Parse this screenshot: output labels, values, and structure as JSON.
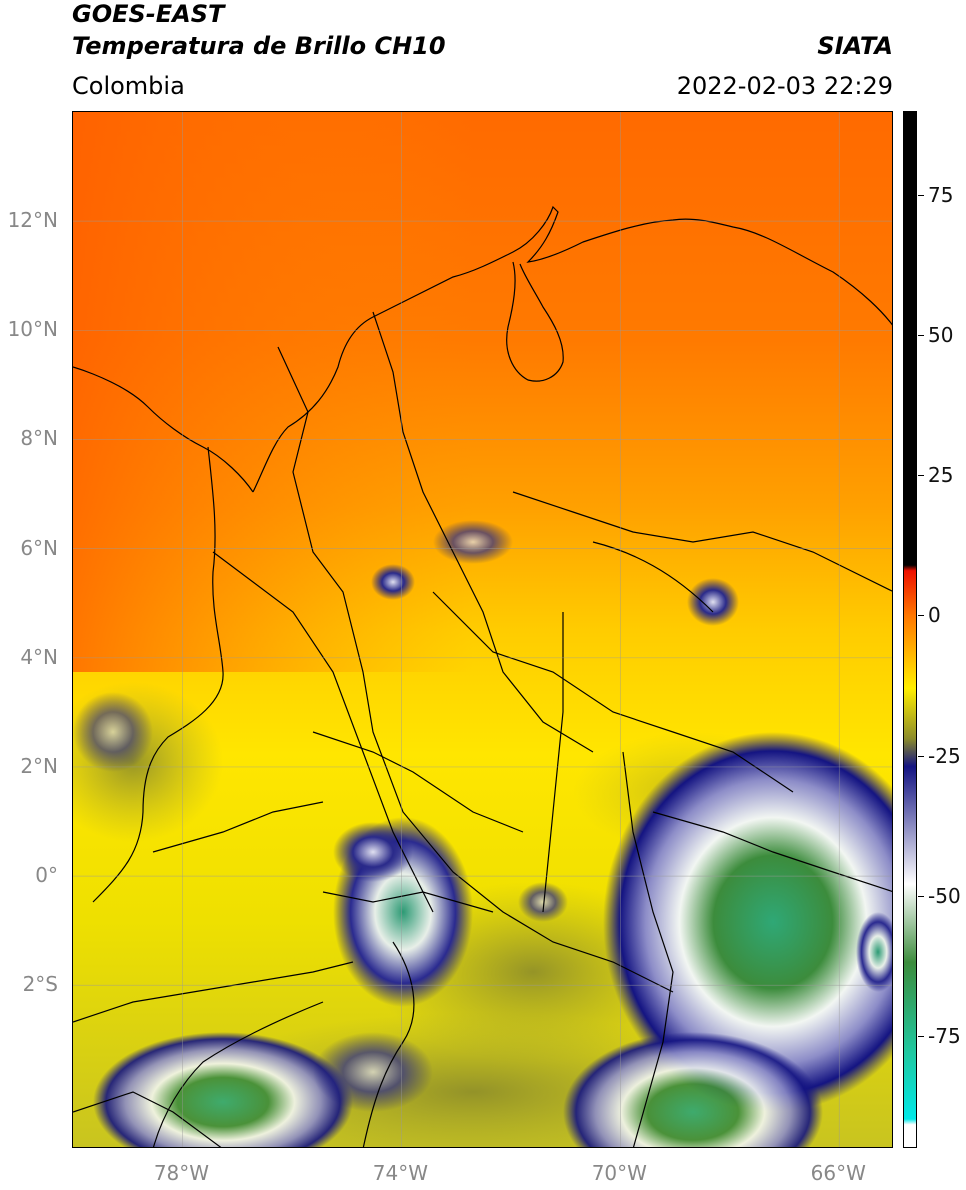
{
  "header": {
    "title_line1": "GOES-EAST",
    "title_line2": "Temperatura de Brillo CH10",
    "region": "Colombia",
    "source": "SIATA",
    "timestamp": "2022-02-03 22:29"
  },
  "map": {
    "extent": {
      "lon_min": -80,
      "lon_max": -65,
      "lat_min": -5,
      "lat_max": 14
    },
    "lat_ticks": [
      {
        "value": 12,
        "label": "12°N"
      },
      {
        "value": 10,
        "label": "10°N"
      },
      {
        "value": 8,
        "label": "8°N"
      },
      {
        "value": 6,
        "label": "6°N"
      },
      {
        "value": 4,
        "label": "4°N"
      },
      {
        "value": 2,
        "label": "2°N"
      },
      {
        "value": 0,
        "label": "0°"
      },
      {
        "value": -2,
        "label": "2°S"
      }
    ],
    "lon_ticks": [
      {
        "value": -78,
        "label": "78°W"
      },
      {
        "value": -74,
        "label": "74°W"
      },
      {
        "value": -70,
        "label": "70°W"
      },
      {
        "value": -66,
        "label": "66°W"
      }
    ],
    "grid": true
  },
  "colorbar": {
    "range": [
      -95,
      90
    ],
    "ticks": [
      {
        "value": 75,
        "label": "75"
      },
      {
        "value": 50,
        "label": "50"
      },
      {
        "value": 25,
        "label": "25"
      },
      {
        "value": 0,
        "label": "0"
      },
      {
        "value": -25,
        "label": "-25"
      },
      {
        "value": -50,
        "label": "-50"
      },
      {
        "value": -75,
        "label": "-75"
      }
    ],
    "colors": {
      "black": "#000000",
      "red": "#ee1100",
      "orange": "#ff7700",
      "yellow": "#ffee00",
      "olive": "#8c8c2a",
      "navy": "#141482",
      "white": "#ffffff",
      "green": "#3c8c3c",
      "teal": "#20c8a0",
      "cyan": "#00e8e8"
    }
  }
}
